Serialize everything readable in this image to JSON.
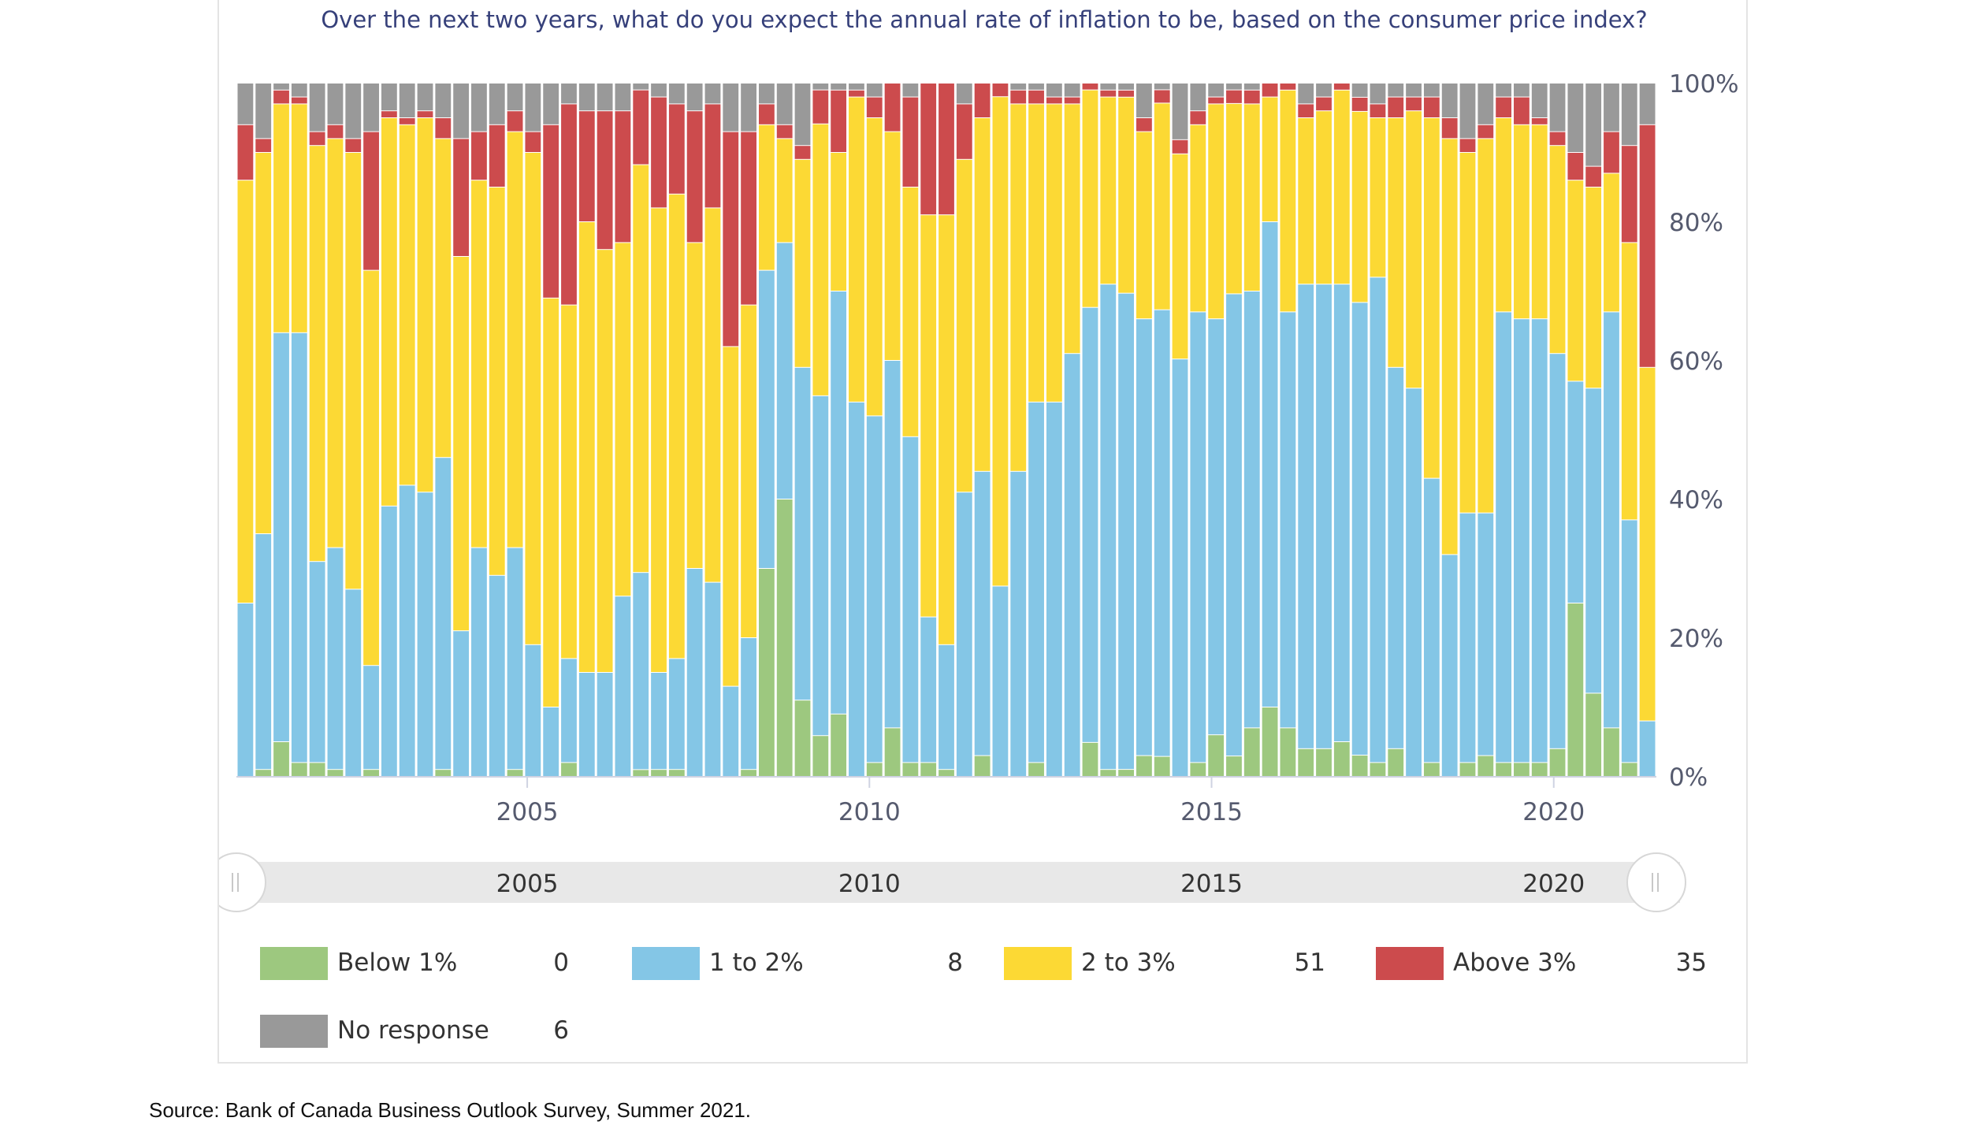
{
  "header": {
    "title": "Over the next two years, what do you expect the annual rate of inflation to be, based on the consumer price index?"
  },
  "navigator": {
    "labels": [
      "2005",
      "2010",
      "2015",
      "2020"
    ]
  },
  "legend": [
    {
      "label": "Below 1%",
      "value": "0",
      "color": "#9dc87f"
    },
    {
      "label": "1 to 2%",
      "value": "8",
      "color": "#84c6e6"
    },
    {
      "label": "2 to 3%",
      "value": "51",
      "color": "#fcd934"
    },
    {
      "label": "Above 3%",
      "value": "35",
      "color": "#cc4b4d"
    },
    {
      "label": "No response",
      "value": "6",
      "color": "#999999"
    }
  ],
  "footer": {
    "source": "Source: Bank of Canada Business Outlook Survey, Summer 2021."
  },
  "chart_data": {
    "type": "bar",
    "stacked": true,
    "xlabel": "",
    "ylabel": "",
    "ylim": [
      0,
      100
    ],
    "yticks": [
      "0%",
      "20%",
      "40%",
      "60%",
      "80%",
      "100%"
    ],
    "xticks": [
      "2005",
      "2010",
      "2015",
      "2020"
    ],
    "x_range": [
      2000.75,
      2021.5
    ],
    "legend_position": "bottom",
    "grid": false,
    "series": [
      {
        "name": "Below 1%",
        "color": "#9dc87f",
        "values": [
          0,
          1,
          5,
          2,
          2,
          1,
          0,
          1,
          0,
          0,
          0,
          1,
          0,
          0,
          0,
          1,
          0,
          0,
          2,
          0,
          0,
          0,
          1,
          1,
          1,
          0,
          0,
          0,
          1,
          30,
          40,
          11,
          6,
          9,
          0,
          2,
          7,
          2,
          2,
          1,
          0,
          3,
          0,
          0,
          2,
          0,
          0,
          5,
          1,
          1,
          3,
          3,
          0,
          2,
          6,
          3,
          7,
          10,
          7,
          4,
          4,
          5,
          3,
          2,
          4,
          0,
          2,
          0,
          2,
          3,
          2,
          2,
          2,
          4,
          25,
          12,
          7,
          2,
          0
        ]
      },
      {
        "name": "1 to 2%",
        "color": "#84c6e6",
        "values": [
          25,
          34,
          59,
          62,
          29,
          32,
          27,
          15,
          39,
          42,
          41,
          45,
          21,
          33,
          29,
          32,
          19,
          10,
          15,
          15,
          15,
          26,
          29,
          14,
          16,
          30,
          28,
          13,
          19,
          43,
          37,
          48,
          50,
          61,
          54,
          50,
          53,
          47,
          21,
          18,
          41,
          41,
          28,
          44,
          52,
          54,
          61,
          64,
          70,
          68,
          63,
          67,
          59,
          65,
          60,
          68,
          63,
          70,
          60,
          67,
          67,
          66,
          64,
          70,
          55,
          56,
          41,
          32,
          36,
          35,
          65,
          64,
          64,
          57,
          32,
          44,
          60,
          35,
          8
        ]
      },
      {
        "name": "2 to 3%",
        "color": "#fcd934",
        "values": [
          61,
          55,
          33,
          33,
          60,
          59,
          63,
          57,
          56,
          52,
          54,
          46,
          54,
          53,
          56,
          60,
          71,
          59,
          51,
          65,
          61,
          51,
          60,
          67,
          67,
          47,
          54,
          49,
          48,
          21,
          15,
          30,
          40,
          20,
          44,
          43,
          33,
          36,
          58,
          62,
          48,
          51,
          72,
          53,
          43,
          43,
          36,
          32,
          27,
          28,
          27,
          31,
          29,
          27,
          31,
          28,
          27,
          18,
          32,
          24,
          25,
          28,
          27,
          23,
          36,
          40,
          52,
          60,
          52,
          54,
          28,
          28,
          28,
          30,
          29,
          29,
          20,
          40,
          51
        ]
      },
      {
        "name": "Above 3%",
        "color": "#cc4b4d",
        "values": [
          8,
          2,
          2,
          1,
          2,
          2,
          2,
          20,
          1,
          1,
          1,
          3,
          17,
          7,
          9,
          3,
          3,
          25,
          29,
          16,
          20,
          19,
          11,
          16,
          13,
          19,
          15,
          31,
          25,
          3,
          2,
          2,
          5,
          9,
          1,
          3,
          7,
          13,
          19,
          19,
          8,
          5,
          2,
          2,
          2,
          1,
          1,
          1,
          1,
          1,
          2,
          2,
          2,
          2,
          1,
          2,
          2,
          2,
          1,
          2,
          2,
          1,
          2,
          2,
          3,
          2,
          3,
          3,
          2,
          2,
          3,
          4,
          1,
          2,
          4,
          3,
          6,
          14,
          35
        ]
      },
      {
        "name": "No response",
        "color": "#999999",
        "values": [
          6,
          8,
          1,
          2,
          7,
          6,
          8,
          7,
          4,
          5,
          4,
          5,
          8,
          7,
          6,
          4,
          7,
          6,
          3,
          4,
          4,
          4,
          1,
          2,
          3,
          4,
          3,
          7,
          7,
          3,
          6,
          9,
          1,
          1,
          1,
          2,
          0,
          2,
          0,
          0,
          3,
          0,
          0,
          1,
          1,
          2,
          2,
          0,
          1,
          1,
          5,
          1,
          8,
          4,
          2,
          1,
          1,
          0,
          0,
          3,
          2,
          0,
          2,
          3,
          2,
          2,
          2,
          5,
          8,
          6,
          2,
          2,
          5,
          7,
          10,
          12,
          7,
          9,
          6
        ]
      }
    ]
  }
}
